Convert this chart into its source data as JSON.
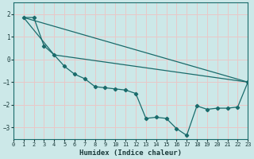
{
  "xlabel": "Humidex (Indice chaleur)",
  "bg_color": "#cce8e8",
  "grid_color": "#e8c8c8",
  "line_color": "#1a6b6b",
  "xlim": [
    0,
    23
  ],
  "ylim": [
    -3.5,
    2.5
  ],
  "xticks": [
    0,
    1,
    2,
    3,
    4,
    5,
    6,
    7,
    8,
    9,
    10,
    11,
    12,
    13,
    14,
    15,
    16,
    17,
    18,
    19,
    20,
    21,
    22,
    23
  ],
  "yticks": [
    -3,
    -2,
    -1,
    0,
    1,
    2
  ],
  "line1_x": [
    1,
    23
  ],
  "line1_y": [
    1.85,
    -1.0
  ],
  "line2_x": [
    1,
    4,
    23
  ],
  "line2_y": [
    1.85,
    0.2,
    -1.0
  ],
  "line3_x": [
    1,
    2,
    3,
    4,
    5,
    6,
    7,
    8,
    9,
    10,
    11,
    12,
    13,
    14,
    15,
    16,
    17,
    18,
    19,
    20,
    21,
    22,
    23
  ],
  "line3_y": [
    1.85,
    1.85,
    0.6,
    0.2,
    -0.3,
    -0.65,
    -0.85,
    -1.2,
    -1.25,
    -1.3,
    -1.35,
    -1.5,
    -2.6,
    -2.55,
    -2.6,
    -3.05,
    -3.35,
    -2.05,
    -2.2,
    -2.15,
    -2.15,
    -2.1,
    -1.0
  ]
}
